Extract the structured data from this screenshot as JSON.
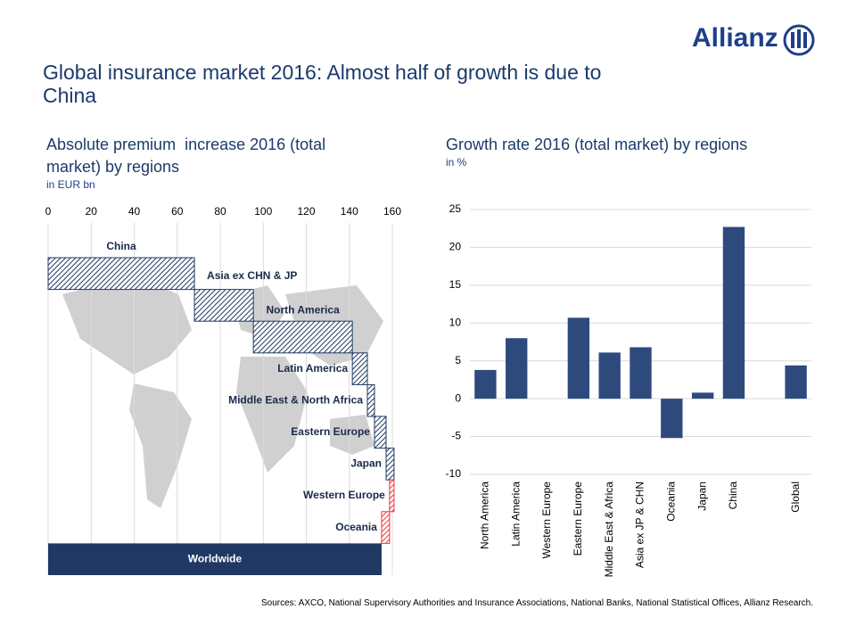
{
  "header": {
    "logo": "Allianz",
    "title": "Global insurance market 2016: Almost half of growth is due to China"
  },
  "chart_data": [
    {
      "type": "waterfall",
      "title": "Absolute premium  increase 2016 (total market) by regions",
      "subtitle": "in EUR bn",
      "categories": [
        "China",
        "Asia ex CHN & JP",
        "North America",
        "Latin America",
        "Middle East & North Africa",
        "Eastern Europe",
        "Japan",
        "Western Europe",
        "Oceania"
      ],
      "values": [
        68,
        27.4,
        46,
        7,
        3.3,
        5.4,
        3.7,
        -2.1,
        -3.7
      ],
      "total_label": "Worldwide",
      "total_value": 155,
      "xlim": [
        0,
        160
      ],
      "xticks": [
        0,
        20,
        40,
        60,
        80,
        100,
        120,
        140,
        160
      ],
      "color": "#1f3864",
      "negative_color": "#e8383d",
      "total_color": "#1f3864",
      "grid": true
    },
    {
      "type": "bar",
      "title": "Growth rate 2016 (total market) by regions",
      "subtitle": "in %",
      "categories": [
        "North America",
        "Latin America",
        "Western Europe",
        "Eastern Europe",
        "Middle East & Africa",
        "Asia ex JP & CHN",
        "Oceania",
        "Japan",
        "China",
        null,
        "Global"
      ],
      "values": [
        3.8,
        8,
        0,
        10.7,
        6.1,
        6.8,
        -5.2,
        0.8,
        22.7,
        null,
        4.4
      ],
      "ylim": [
        -10,
        25
      ],
      "yticks": [
        -10,
        -5,
        0,
        5,
        10,
        15,
        20,
        25
      ],
      "color": "#2e4a7d",
      "grid": true
    }
  ],
  "footer": {
    "source": "Sources: AXCO, National Supervisory Authorities and Insurance Associations, National Banks, National Statistical Offices, Allianz Research."
  }
}
